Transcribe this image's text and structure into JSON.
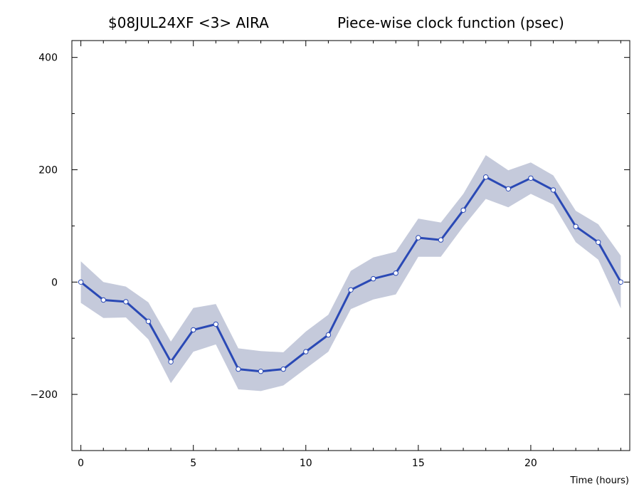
{
  "colors": {
    "line": "#2a49b5",
    "band": "#c5cadb",
    "marker_fill": "#ffffff",
    "axis": "#000000"
  },
  "chart_data": {
    "type": "line",
    "title_left": "$08JUL24XF <3>  AIRA",
    "title_right": "Piece-wise clock function (psec)",
    "xlabel": "Time (hours)",
    "ylabel": "",
    "xlim": [
      -0.4,
      24.4
    ],
    "ylim": [
      -300,
      430
    ],
    "xticks": [
      0,
      5,
      10,
      15,
      20
    ],
    "yticks": [
      -200,
      0,
      200,
      400
    ],
    "xtick_labels": [
      "0",
      "5",
      "10",
      "15",
      "20"
    ],
    "ytick_labels": [
      "−200",
      "0",
      "200",
      "400"
    ],
    "x": [
      0,
      1,
      2,
      3,
      4,
      5,
      6,
      7,
      8,
      9,
      10,
      11,
      12,
      13,
      14,
      15,
      16,
      17,
      18,
      19,
      20,
      21,
      22,
      23,
      24
    ],
    "series": [
      {
        "values": [
          0,
          -32,
          -35,
          -70,
          -142,
          -85,
          -75,
          -155,
          -159,
          -155,
          -124,
          -94,
          -14,
          6,
          16,
          79,
          75,
          128,
          187,
          166,
          185,
          164,
          99,
          71,
          0
        ],
        "upper": [
          37,
          0,
          -8,
          -36,
          -106,
          -46,
          -39,
          -118,
          -123,
          -125,
          -88,
          -58,
          20,
          44,
          54,
          113,
          106,
          157,
          226,
          199,
          213,
          190,
          127,
          103,
          47
        ],
        "lower": [
          -37,
          -64,
          -63,
          -102,
          -180,
          -124,
          -111,
          -191,
          -194,
          -184,
          -154,
          -124,
          -48,
          -31,
          -22,
          45,
          45,
          99,
          148,
          133,
          157,
          138,
          71,
          40,
          -47
        ]
      }
    ],
    "grid": false,
    "legend": "none"
  }
}
